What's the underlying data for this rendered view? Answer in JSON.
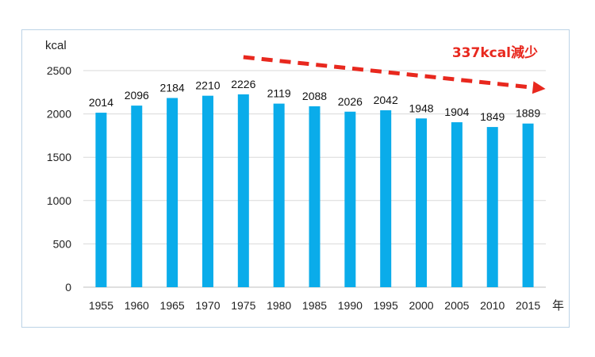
{
  "chart_data": {
    "type": "bar",
    "ylabel": "kcal",
    "xlabel": "年",
    "ylim": [
      0,
      2500
    ],
    "yticks": [
      0,
      500,
      1000,
      1500,
      2000,
      2500
    ],
    "grid": true,
    "categories": [
      "1955",
      "1960",
      "1965",
      "1970",
      "1975",
      "1980",
      "1985",
      "1990",
      "1995",
      "2000",
      "2005",
      "2010",
      "2015"
    ],
    "values": [
      2014,
      2096,
      2184,
      2210,
      2226,
      2119,
      2088,
      2026,
      2042,
      1948,
      1904,
      1849,
      1889
    ],
    "bar_color": "#0aacea",
    "annotation": {
      "text": "337kcal減少",
      "color": "#e8281e",
      "from_category": "1975",
      "to_category": "2015"
    }
  }
}
